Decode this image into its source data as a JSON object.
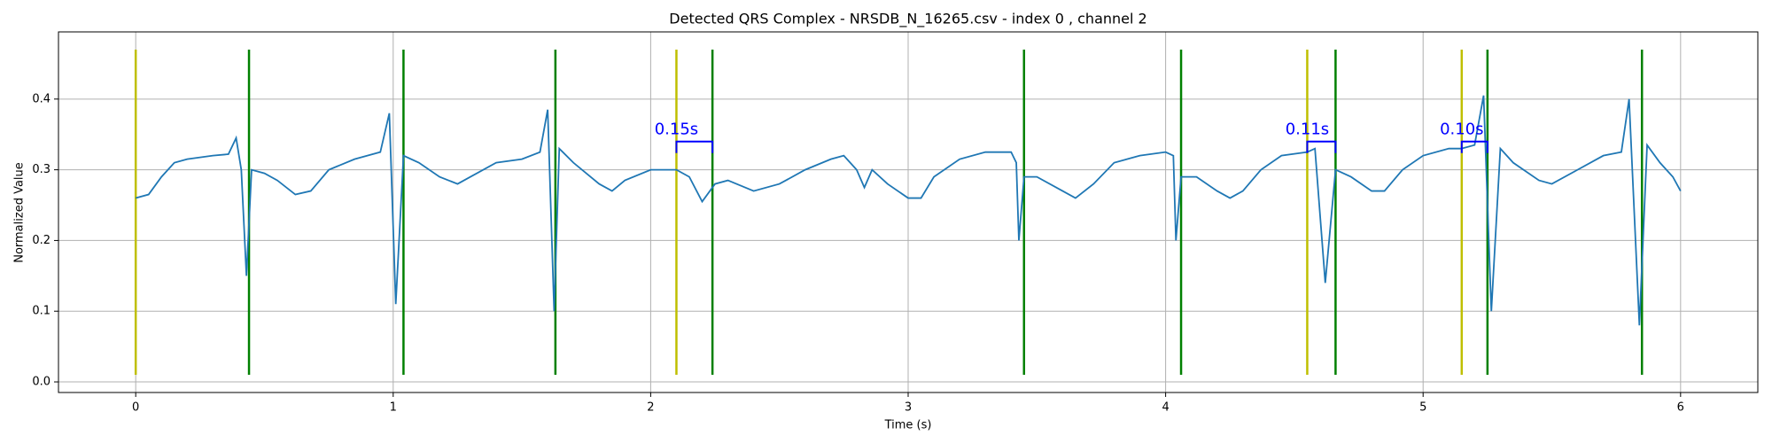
{
  "chart_data": {
    "type": "line",
    "title": "Detected QRS Complex - NRSDB_N_16265.csv - index 0 , channel 2",
    "x_label": "Time (s)",
    "y_label": "Normalized Value",
    "xlim": [
      -0.3,
      6.3
    ],
    "ylim": [
      -0.015,
      0.495
    ],
    "xticks": [
      0,
      1,
      2,
      3,
      4,
      5,
      6
    ],
    "yticks": [
      {
        "value": 0,
        "label": "0.0"
      },
      0.1,
      0.2,
      0.3,
      0.4
    ],
    "grid": true,
    "x": [
      0,
      0.05,
      0.1,
      0.15,
      0.2,
      0.3,
      0.36,
      0.39,
      0.41,
      0.43,
      0.45,
      0.5,
      0.55,
      0.62,
      0.68,
      0.75,
      0.85,
      0.95,
      0.985,
      1.01,
      1.04,
      1.1,
      1.18,
      1.25,
      1.3,
      1.4,
      1.5,
      1.57,
      1.6,
      1.625,
      1.645,
      1.7,
      1.8,
      1.85,
      1.9,
      2.0,
      2.1,
      2.15,
      2.2,
      2.25,
      2.3,
      2.4,
      2.5,
      2.6,
      2.7,
      2.75,
      2.8,
      2.83,
      2.86,
      2.92,
      3.0,
      3.05,
      3.1,
      3.2,
      3.3,
      3.4,
      3.42,
      3.43,
      3.45,
      3.5,
      3.6,
      3.65,
      3.72,
      3.8,
      3.9,
      4.0,
      4.03,
      4.04,
      4.06,
      4.12,
      4.2,
      4.25,
      4.3,
      4.37,
      4.45,
      4.55,
      4.58,
      4.62,
      4.66,
      4.72,
      4.8,
      4.85,
      4.92,
      5.0,
      5.1,
      5.15,
      5.2,
      5.235,
      5.265,
      5.3,
      5.35,
      5.45,
      5.5,
      5.6,
      5.7,
      5.77,
      5.8,
      5.84,
      5.87,
      5.92,
      5.97,
      6.0
    ],
    "series": [
      {
        "color": "#1f77b4",
        "values": [
          0.26,
          0.265,
          0.29,
          0.31,
          0.315,
          0.32,
          0.322,
          0.345,
          0.3,
          0.15,
          0.3,
          0.295,
          0.285,
          0.265,
          0.27,
          0.3,
          0.315,
          0.325,
          0.38,
          0.11,
          0.32,
          0.31,
          0.29,
          0.28,
          0.29,
          0.31,
          0.315,
          0.325,
          0.385,
          0.1,
          0.33,
          0.31,
          0.28,
          0.27,
          0.285,
          0.3,
          0.3,
          0.29,
          0.255,
          0.28,
          0.285,
          0.27,
          0.28,
          0.3,
          0.315,
          0.32,
          0.3,
          0.275,
          0.3,
          0.28,
          0.26,
          0.26,
          0.29,
          0.315,
          0.325,
          0.325,
          0.31,
          0.2,
          0.29,
          0.29,
          0.27,
          0.26,
          0.28,
          0.31,
          0.32,
          0.325,
          0.32,
          0.2,
          0.29,
          0.29,
          0.27,
          0.26,
          0.27,
          0.3,
          0.32,
          0.325,
          0.33,
          0.14,
          0.3,
          0.29,
          0.27,
          0.27,
          0.3,
          0.32,
          0.33,
          0.33,
          0.335,
          0.405,
          0.1,
          0.33,
          0.31,
          0.285,
          0.28,
          0.3,
          0.32,
          0.325,
          0.4,
          0.08,
          0.335,
          0.31,
          0.29,
          0.27
        ]
      }
    ],
    "vlines": [
      {
        "color": "#bfbf00",
        "values": [
          0,
          2.1,
          4.55,
          5.15
        ]
      },
      {
        "color": "#008000",
        "values": [
          0.44,
          1.04,
          1.63,
          2.24,
          3.45,
          4.06,
          4.66,
          5.25,
          5.85
        ]
      }
    ],
    "vline_range": [
      0.01,
      0.47
    ],
    "annotations": [
      {
        "text": "0.15s",
        "x0": 2.1,
        "x1": 2.24,
        "y": 0.34,
        "color": "#0000ff"
      },
      {
        "text": "0.11s",
        "x0": 4.55,
        "x1": 4.66,
        "y": 0.34,
        "color": "#0000ff"
      },
      {
        "text": "0.10s",
        "x0": 5.15,
        "x1": 5.25,
        "y": 0.34,
        "color": "#0000ff"
      }
    ]
  }
}
